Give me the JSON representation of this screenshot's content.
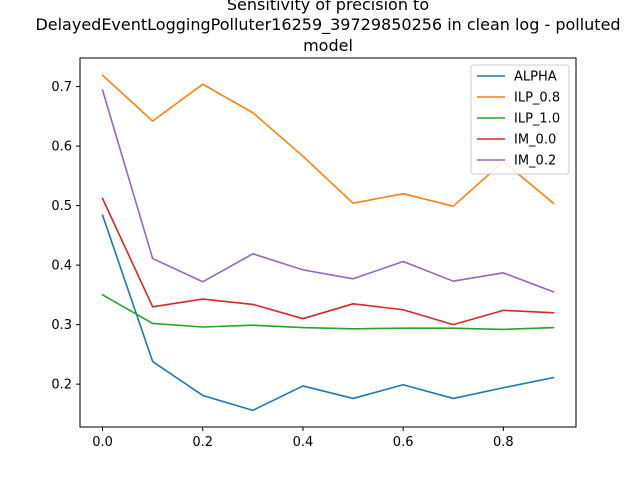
{
  "chart_data": {
    "type": "line",
    "title_lines": [
      "Sensitivity of precision to",
      "DelayedEventLoggingPolluter16259_39729850256 in clean log - polluted",
      "model"
    ],
    "xlabel": "",
    "ylabel": "",
    "x": [
      0.0,
      0.1,
      0.2,
      0.3,
      0.4,
      0.5,
      0.6,
      0.7,
      0.8,
      0.9
    ],
    "xlim": [
      -0.045,
      0.945
    ],
    "ylim": [
      0.128,
      0.748
    ],
    "xticks": [
      0.0,
      0.2,
      0.4,
      0.6,
      0.8
    ],
    "xtick_labels": [
      "0.0",
      "0.2",
      "0.4",
      "0.6",
      "0.8"
    ],
    "yticks": [
      0.2,
      0.3,
      0.4,
      0.5,
      0.6,
      0.7
    ],
    "ytick_labels": [
      "0.2",
      "0.3",
      "0.4",
      "0.5",
      "0.6",
      "0.7"
    ],
    "grid": false,
    "legend_position": "top-right",
    "series": [
      {
        "name": "ALPHA",
        "color": "#1f77b4",
        "values": [
          0.484,
          0.238,
          0.181,
          0.156,
          0.197,
          0.176,
          0.199,
          0.176,
          0.194,
          0.211
        ]
      },
      {
        "name": "ILP_0.8",
        "color": "#ff7f0e",
        "values": [
          0.719,
          0.642,
          0.704,
          0.656,
          0.583,
          0.504,
          0.52,
          0.499,
          0.574,
          0.504
        ]
      },
      {
        "name": "ILP_1.0",
        "color": "#2ca02c",
        "values": [
          0.35,
          0.302,
          0.296,
          0.299,
          0.295,
          0.293,
          0.294,
          0.294,
          0.292,
          0.295
        ]
      },
      {
        "name": "IM_0.0",
        "color": "#d62728",
        "values": [
          0.512,
          0.33,
          0.343,
          0.334,
          0.31,
          0.335,
          0.325,
          0.3,
          0.324,
          0.32
        ]
      },
      {
        "name": "IM_0.2",
        "color": "#9467bd",
        "values": [
          0.694,
          0.411,
          0.372,
          0.419,
          0.392,
          0.377,
          0.406,
          0.373,
          0.387,
          0.355
        ]
      }
    ]
  }
}
